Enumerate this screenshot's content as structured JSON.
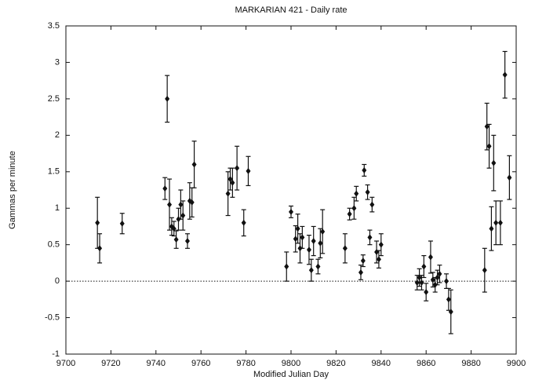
{
  "chart_data": {
    "type": "scatter",
    "title": "MARKARIAN 421 - Daily rate",
    "x_label": "Modified Julian Day",
    "y_label": "Gammas per minute",
    "xlim": [
      9700,
      9900
    ],
    "xticks": [
      9700,
      9720,
      9740,
      9760,
      9780,
      9800,
      9820,
      9840,
      9860,
      9880,
      9900
    ],
    "ylim": [
      -1,
      3.5
    ],
    "yticks": [
      -1,
      -0.5,
      0,
      0.5,
      1,
      1.5,
      2,
      2.5,
      3,
      3.5
    ],
    "zero_line": true,
    "color": "#111111",
    "series": [
      {
        "x": [
          9714,
          9715,
          9725,
          9744,
          9745,
          9746,
          9747,
          9748,
          9749,
          9750,
          9751,
          9752,
          9754,
          9755,
          9756,
          9757,
          9772,
          9773,
          9774,
          9776,
          9779,
          9781,
          9798,
          9800,
          9802,
          9803,
          9804,
          9805,
          9808,
          9809,
          9810,
          9812,
          9813,
          9814,
          9824,
          9826,
          9828,
          9829,
          9831,
          9832,
          9832.5,
          9834,
          9835,
          9836,
          9838,
          9839,
          9840,
          9856,
          9857,
          9858,
          9859,
          9860,
          9862,
          9863,
          9864,
          9865,
          9866,
          9869,
          9870,
          9871,
          9886,
          9887,
          9888,
          9889,
          9890,
          9891,
          9893,
          9895,
          9897
        ],
        "values": [
          0.8,
          0.45,
          0.79,
          1.27,
          2.5,
          1.05,
          0.75,
          0.72,
          0.57,
          0.85,
          1.05,
          0.9,
          0.55,
          1.1,
          1.08,
          1.6,
          1.2,
          1.4,
          1.35,
          1.55,
          0.8,
          1.51,
          0.2,
          0.95,
          0.58,
          0.72,
          0.45,
          0.6,
          0.43,
          0.15,
          0.55,
          0.2,
          0.52,
          0.68,
          0.45,
          0.92,
          1.0,
          1.2,
          0.12,
          0.28,
          1.52,
          1.22,
          0.6,
          1.05,
          0.4,
          0.3,
          0.5,
          -0.02,
          0.05,
          -0.02,
          0.2,
          -0.15,
          0.33,
          0.02,
          -0.05,
          0.05,
          0.1,
          0.0,
          -0.25,
          -0.42,
          0.15,
          2.12,
          1.85,
          0.72,
          1.62,
          0.8,
          0.8,
          2.83,
          1.42
        ],
        "errors": [
          0.35,
          0.2,
          0.14,
          0.15,
          0.32,
          0.35,
          0.12,
          0.1,
          0.12,
          0.15,
          0.2,
          0.2,
          0.1,
          0.25,
          0.2,
          0.32,
          0.3,
          0.15,
          0.2,
          0.3,
          0.18,
          0.2,
          0.2,
          0.08,
          0.18,
          0.2,
          0.2,
          0.15,
          0.2,
          0.15,
          0.2,
          0.1,
          0.2,
          0.3,
          0.2,
          0.08,
          0.15,
          0.1,
          0.1,
          0.08,
          0.08,
          0.1,
          0.1,
          0.1,
          0.15,
          0.12,
          0.15,
          0.1,
          0.12,
          0.1,
          0.15,
          0.12,
          0.22,
          0.1,
          0.1,
          0.1,
          0.12,
          0.1,
          0.15,
          0.3,
          0.3,
          0.32,
          0.3,
          0.3,
          0.38,
          0.3,
          0.3,
          0.32,
          0.3
        ]
      }
    ]
  }
}
